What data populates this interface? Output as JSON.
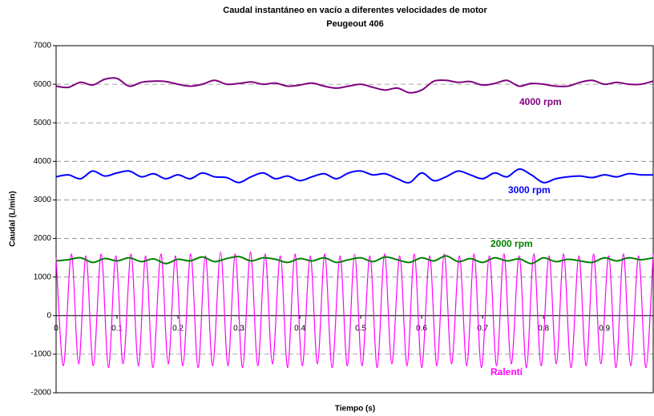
{
  "chart_data": {
    "type": "line",
    "title": "Caudal instantáneo en vacío a diferentes velocidades de motor",
    "subtitle": "Peugeout 406",
    "x_label": "Tiempo (s)",
    "y_label": "Caudal (L/min)",
    "xlim": [
      0,
      0.98
    ],
    "xticks": [
      0,
      0.1,
      0.2,
      0.3,
      0.4,
      0.5,
      0.6,
      0.7,
      0.8,
      0.9
    ],
    "ylim": [
      -2000,
      7000
    ],
    "yticks": [
      -2000,
      -1000,
      0,
      1000,
      2000,
      3000,
      4000,
      5000,
      6000,
      7000
    ],
    "grid": true,
    "series": [
      {
        "name": "4000 rpm",
        "color": "#800080",
        "x": [
          0,
          0.02,
          0.04,
          0.06,
          0.08,
          0.1,
          0.12,
          0.14,
          0.16,
          0.18,
          0.2,
          0.22,
          0.24,
          0.26,
          0.28,
          0.3,
          0.32,
          0.34,
          0.36,
          0.38,
          0.4,
          0.42,
          0.44,
          0.46,
          0.48,
          0.5,
          0.52,
          0.54,
          0.56,
          0.58,
          0.6,
          0.62,
          0.64,
          0.66,
          0.68,
          0.7,
          0.72,
          0.74,
          0.76,
          0.78,
          0.8,
          0.82,
          0.84,
          0.86,
          0.88,
          0.9,
          0.92,
          0.94,
          0.96,
          0.98
        ],
        "values": [
          5950,
          5920,
          6050,
          5980,
          6130,
          6150,
          5950,
          6050,
          6080,
          6070,
          6000,
          5950,
          6000,
          6100,
          6000,
          6020,
          6060,
          6000,
          6030,
          5950,
          5980,
          6030,
          5950,
          5900,
          5950,
          6000,
          5920,
          5850,
          5900,
          5780,
          5850,
          6080,
          6100,
          6050,
          6070,
          5980,
          6020,
          6100,
          5950,
          6020,
          6000,
          5950,
          5950,
          6050,
          6100,
          6000,
          6050,
          6000,
          6000,
          6080
        ]
      },
      {
        "name": "3000 rpm",
        "color": "#0000ff",
        "x": [
          0,
          0.02,
          0.04,
          0.06,
          0.08,
          0.1,
          0.12,
          0.14,
          0.16,
          0.18,
          0.2,
          0.22,
          0.24,
          0.26,
          0.28,
          0.3,
          0.32,
          0.34,
          0.36,
          0.38,
          0.4,
          0.42,
          0.44,
          0.46,
          0.48,
          0.5,
          0.52,
          0.54,
          0.56,
          0.58,
          0.6,
          0.62,
          0.64,
          0.66,
          0.68,
          0.7,
          0.72,
          0.74,
          0.76,
          0.78,
          0.8,
          0.82,
          0.84,
          0.86,
          0.88,
          0.9,
          0.92,
          0.94,
          0.96,
          0.98
        ],
        "values": [
          3600,
          3650,
          3550,
          3750,
          3620,
          3700,
          3750,
          3600,
          3680,
          3550,
          3650,
          3550,
          3700,
          3600,
          3580,
          3450,
          3600,
          3700,
          3550,
          3620,
          3500,
          3600,
          3680,
          3550,
          3700,
          3750,
          3650,
          3680,
          3550,
          3450,
          3700,
          3500,
          3600,
          3750,
          3650,
          3550,
          3700,
          3600,
          3800,
          3650,
          3450,
          3550,
          3600,
          3620,
          3580,
          3650,
          3600,
          3680,
          3650,
          3650
        ]
      },
      {
        "name": "2000 rpm",
        "color": "#008000",
        "x": [
          0,
          0.02,
          0.04,
          0.06,
          0.08,
          0.1,
          0.12,
          0.14,
          0.16,
          0.18,
          0.2,
          0.22,
          0.24,
          0.26,
          0.28,
          0.3,
          0.32,
          0.34,
          0.36,
          0.38,
          0.4,
          0.42,
          0.44,
          0.46,
          0.48,
          0.5,
          0.52,
          0.54,
          0.56,
          0.58,
          0.6,
          0.62,
          0.64,
          0.66,
          0.68,
          0.7,
          0.72,
          0.74,
          0.76,
          0.78,
          0.8,
          0.82,
          0.84,
          0.86,
          0.88,
          0.9,
          0.92,
          0.94,
          0.96,
          0.98
        ],
        "values": [
          1420,
          1450,
          1500,
          1380,
          1480,
          1420,
          1500,
          1400,
          1470,
          1350,
          1460,
          1420,
          1520,
          1400,
          1480,
          1530,
          1420,
          1500,
          1460,
          1380,
          1480,
          1420,
          1500,
          1380,
          1450,
          1500,
          1400,
          1520,
          1450,
          1380,
          1500,
          1420,
          1550,
          1400,
          1480,
          1380,
          1500,
          1420,
          1470,
          1350,
          1500,
          1400,
          1460,
          1420,
          1380,
          1500,
          1420,
          1500,
          1450,
          1500
        ]
      },
      {
        "name": "Ralentí",
        "color": "#ff00ff",
        "x": [
          0,
          0.012,
          0.025,
          0.037,
          0.049,
          0.061,
          0.074,
          0.086,
          0.098,
          0.11,
          0.123,
          0.135,
          0.147,
          0.159,
          0.172,
          0.184,
          0.196,
          0.208,
          0.221,
          0.233,
          0.245,
          0.257,
          0.27,
          0.282,
          0.294,
          0.306,
          0.319,
          0.331,
          0.343,
          0.355,
          0.368,
          0.38,
          0.392,
          0.404,
          0.417,
          0.429,
          0.441,
          0.453,
          0.466,
          0.478,
          0.49,
          0.502,
          0.515,
          0.527,
          0.539,
          0.551,
          0.564,
          0.576,
          0.588,
          0.6,
          0.613,
          0.625,
          0.637,
          0.649,
          0.662,
          0.674,
          0.686,
          0.698,
          0.711,
          0.723,
          0.735,
          0.747,
          0.76,
          0.772,
          0.784,
          0.796,
          0.809,
          0.821,
          0.833,
          0.845,
          0.858,
          0.87,
          0.882,
          0.894,
          0.907,
          0.919,
          0.931,
          0.943,
          0.956,
          0.968,
          0.98
        ],
        "values": [
          1500,
          -1300,
          1600,
          -1250,
          1550,
          -1300,
          1600,
          -1350,
          1550,
          -1250,
          1600,
          -1300,
          1550,
          -1350,
          1600,
          -1250,
          1550,
          -1300,
          1600,
          -1350,
          1550,
          -1300,
          1650,
          -1300,
          1600,
          -1350,
          1650,
          -1300,
          1600,
          -1250,
          1550,
          -1350,
          1600,
          -1300,
          1550,
          -1250,
          1600,
          -1350,
          1550,
          -1300,
          1600,
          -1300,
          1550,
          -1350,
          1600,
          -1250,
          1550,
          -1300,
          1600,
          -1350,
          1550,
          -1300,
          1600,
          -1250,
          1550,
          -1300,
          1600,
          -1350,
          1550,
          -1300,
          1600,
          -1250,
          1550,
          -1350,
          1600,
          -1300,
          1550,
          -1250,
          1600,
          -1350,
          1550,
          -1300,
          1600,
          -1250,
          1550,
          -1350,
          1600,
          -1300,
          1550,
          -1350,
          1600
        ]
      }
    ]
  }
}
